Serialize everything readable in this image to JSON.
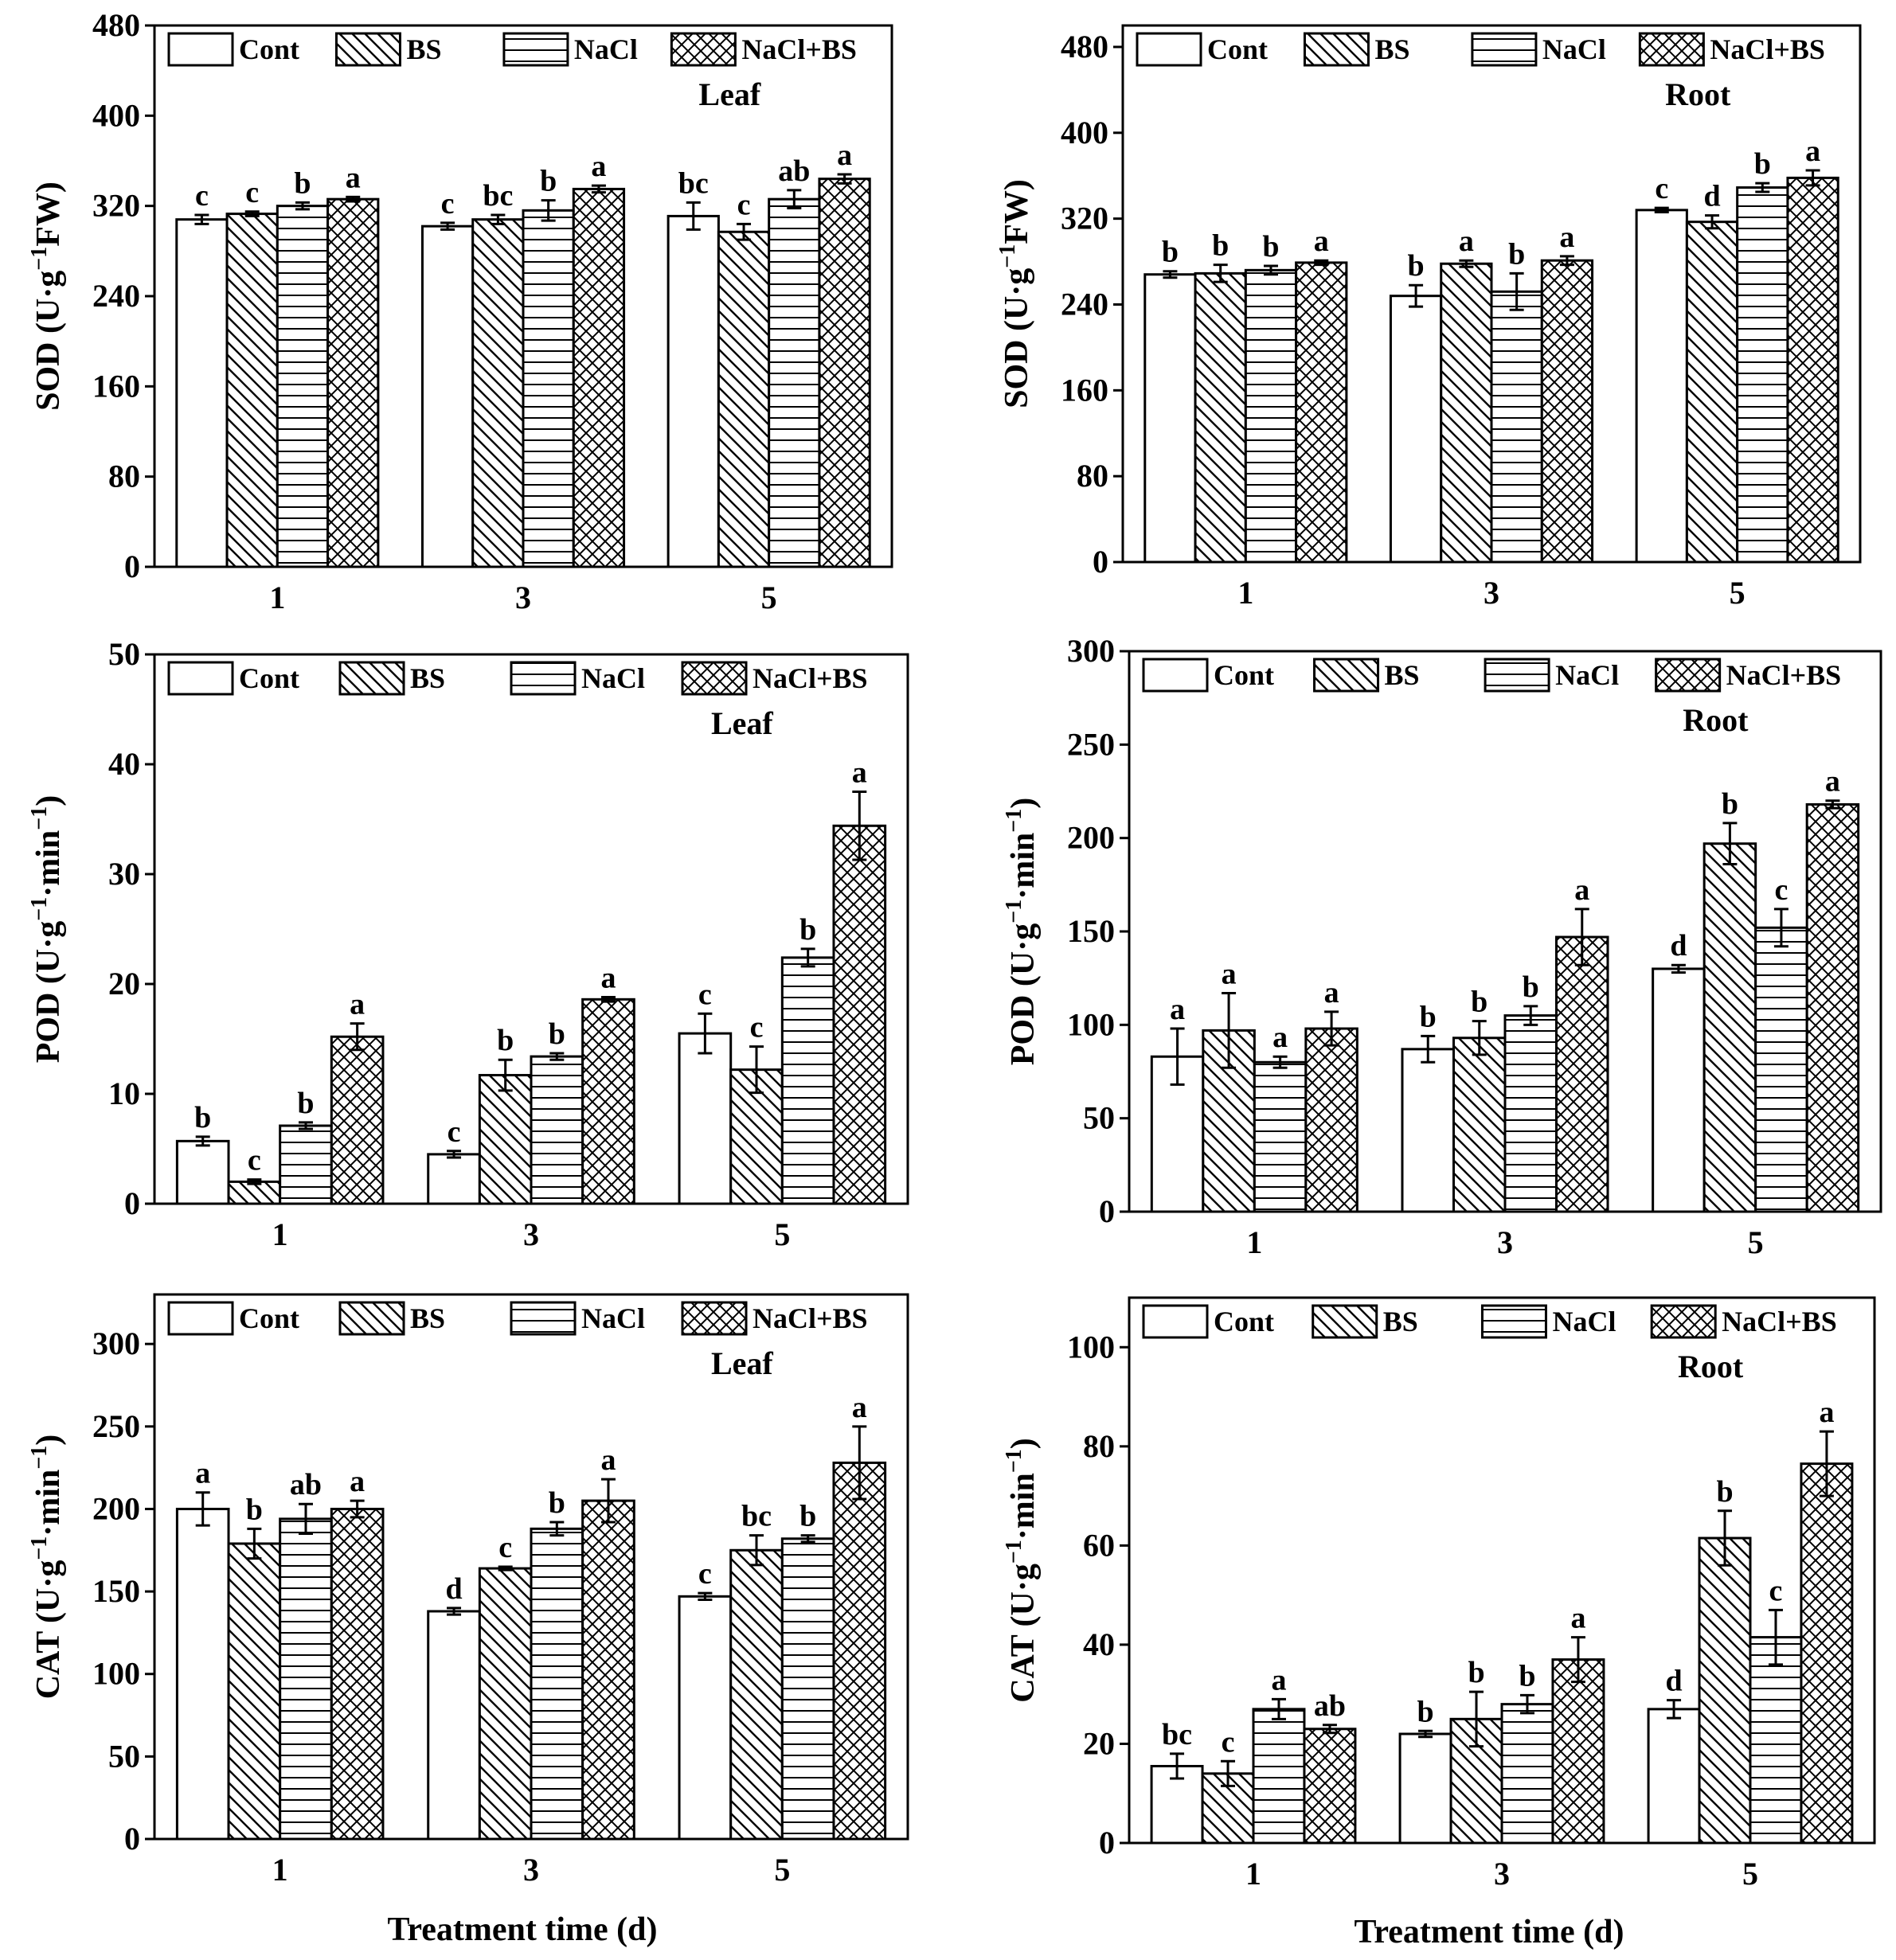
{
  "legend": {
    "Cont": "Cont",
    "BS": "BS",
    "NaCl": "NaCl",
    "NaCl_BS": "NaCl+BS"
  },
  "series_patterns": {
    "Cont": "empty",
    "BS": "diagonal",
    "NaCl": "horizontal",
    "NaCl+BS": "crosshatch"
  },
  "x_axis_title": "Treatment time (d)",
  "chart_data": [
    {
      "type": "bar",
      "panel_label": "Leaf",
      "ylabel_main": "SOD (U·g",
      "ylabel_sup": "−1",
      "ylabel_tail": "FW)",
      "categories": [
        "1",
        "3",
        "5"
      ],
      "ylim": [
        0,
        480
      ],
      "yticks": [
        0,
        80,
        160,
        240,
        320,
        400,
        480
      ],
      "series": [
        {
          "name": "Cont",
          "values": [
            308,
            302,
            311
          ],
          "errors": [
            4,
            3,
            12
          ],
          "letters": [
            "c",
            "c",
            "bc"
          ]
        },
        {
          "name": "BS",
          "values": [
            313,
            308,
            297
          ],
          "errors": [
            2,
            4,
            7
          ],
          "letters": [
            "c",
            "bc",
            "c"
          ]
        },
        {
          "name": "NaCl",
          "values": [
            320,
            316,
            326
          ],
          "errors": [
            3,
            9,
            8
          ],
          "letters": [
            "b",
            "b",
            "ab"
          ]
        },
        {
          "name": "NaCl+BS",
          "values": [
            326,
            335,
            344
          ],
          "errors": [
            2,
            3,
            4
          ],
          "letters": [
            "a",
            "a",
            "a"
          ]
        }
      ]
    },
    {
      "type": "bar",
      "panel_label": "Root",
      "ylabel_main": "SOD (U·g",
      "ylabel_sup": "−1",
      "ylabel_tail": "FW)",
      "categories": [
        "1",
        "3",
        "5"
      ],
      "ylim": [
        0,
        500
      ],
      "yticks": [
        0,
        80,
        160,
        240,
        320,
        400,
        480
      ],
      "series": [
        {
          "name": "Cont",
          "values": [
            268,
            248,
            328
          ],
          "errors": [
            3,
            10,
            2
          ],
          "letters": [
            "b",
            "b",
            "c"
          ]
        },
        {
          "name": "BS",
          "values": [
            269,
            278,
            317
          ],
          "errors": [
            8,
            3,
            6
          ],
          "letters": [
            "b",
            "a",
            "d"
          ]
        },
        {
          "name": "NaCl",
          "values": [
            272,
            252,
            349
          ],
          "errors": [
            4,
            17,
            4
          ],
          "letters": [
            "b",
            "b",
            "b"
          ]
        },
        {
          "name": "NaCl+BS",
          "values": [
            279,
            281,
            358
          ],
          "errors": [
            2,
            4,
            7
          ],
          "letters": [
            "a",
            "a",
            "a"
          ]
        }
      ]
    },
    {
      "type": "bar",
      "panel_label": "Leaf",
      "ylabel_main": "POD (U·g",
      "ylabel_sup": "−1",
      "ylabel_tail": "·min",
      "ylabel_sup2": "−1",
      "ylabel_end": ")",
      "categories": [
        "1",
        "3",
        "5"
      ],
      "ylim": [
        0,
        50
      ],
      "yticks": [
        0,
        10,
        20,
        30,
        40,
        50
      ],
      "series": [
        {
          "name": "Cont",
          "values": [
            5.7,
            4.5,
            15.5
          ],
          "errors": [
            0.4,
            0.3,
            1.8
          ],
          "letters": [
            "b",
            "c",
            "c"
          ]
        },
        {
          "name": "BS",
          "values": [
            2.0,
            11.7,
            12.2
          ],
          "errors": [
            0.2,
            1.4,
            2.1
          ],
          "letters": [
            "c",
            "b",
            "c"
          ]
        },
        {
          "name": "NaCl",
          "values": [
            7.1,
            13.4,
            22.4
          ],
          "errors": [
            0.3,
            0.3,
            0.8
          ],
          "letters": [
            "b",
            "b",
            "b"
          ]
        },
        {
          "name": "NaCl+BS",
          "values": [
            15.2,
            18.6,
            34.4
          ],
          "errors": [
            1.2,
            0.2,
            3.1
          ],
          "letters": [
            "a",
            "a",
            "a"
          ]
        }
      ]
    },
    {
      "type": "bar",
      "panel_label": "Root",
      "ylabel_main": "POD (U·g",
      "ylabel_sup": "−1",
      "ylabel_tail": "·min",
      "ylabel_sup2": "−1",
      "ylabel_end": ")",
      "categories": [
        "1",
        "3",
        "5"
      ],
      "ylim": [
        0,
        300
      ],
      "yticks": [
        0,
        50,
        100,
        150,
        200,
        250,
        300
      ],
      "series": [
        {
          "name": "Cont",
          "values": [
            83,
            87,
            130
          ],
          "errors": [
            15,
            7,
            2
          ],
          "letters": [
            "a",
            "b",
            "d"
          ]
        },
        {
          "name": "BS",
          "values": [
            97,
            93,
            197
          ],
          "errors": [
            20,
            9,
            11
          ],
          "letters": [
            "a",
            "b",
            "b"
          ]
        },
        {
          "name": "NaCl",
          "values": [
            80,
            105,
            152
          ],
          "errors": [
            3,
            5,
            10
          ],
          "letters": [
            "a",
            "b",
            "c"
          ]
        },
        {
          "name": "NaCl+BS",
          "values": [
            98,
            147,
            218
          ],
          "errors": [
            9,
            15,
            2
          ],
          "letters": [
            "a",
            "a",
            "a"
          ]
        }
      ]
    },
    {
      "type": "bar",
      "panel_label": "Leaf",
      "ylabel_main": "CAT (U·g",
      "ylabel_sup": "−1",
      "ylabel_tail": "·min",
      "ylabel_sup2": "−1",
      "ylabel_end": ")",
      "categories": [
        "1",
        "3",
        "5"
      ],
      "ylim": [
        0,
        330
      ],
      "yticks": [
        0,
        50,
        100,
        150,
        200,
        250,
        300
      ],
      "series": [
        {
          "name": "Cont",
          "values": [
            200,
            138,
            147
          ],
          "errors": [
            10,
            2,
            2
          ],
          "letters": [
            "a",
            "d",
            "c"
          ]
        },
        {
          "name": "BS",
          "values": [
            179,
            164,
            175
          ],
          "errors": [
            9,
            1,
            9
          ],
          "letters": [
            "b",
            "c",
            "bc"
          ]
        },
        {
          "name": "NaCl",
          "values": [
            194,
            188,
            182
          ],
          "errors": [
            9,
            4,
            2
          ],
          "letters": [
            "ab",
            "b",
            "b"
          ]
        },
        {
          "name": "NaCl+BS",
          "values": [
            200,
            205,
            228
          ],
          "errors": [
            5,
            13,
            22
          ],
          "letters": [
            "a",
            "a",
            "a"
          ]
        }
      ]
    },
    {
      "type": "bar",
      "panel_label": "Root",
      "ylabel_main": "CAT (U·g",
      "ylabel_sup": "−1",
      "ylabel_tail": "·min",
      "ylabel_sup2": "−1",
      "ylabel_end": ")",
      "categories": [
        "1",
        "3",
        "5"
      ],
      "ylim": [
        0,
        110
      ],
      "yticks": [
        20,
        40,
        60,
        80,
        100
      ],
      "show_zero_tick": true,
      "series": [
        {
          "name": "Cont",
          "values": [
            15.5,
            22,
            27
          ],
          "errors": [
            2.5,
            0.6,
            1.8
          ],
          "letters": [
            "bc",
            "b",
            "d"
          ]
        },
        {
          "name": "BS",
          "values": [
            14,
            25,
            61.5
          ],
          "errors": [
            2.5,
            5.5,
            5.5
          ],
          "letters": [
            "c",
            "b",
            "b"
          ]
        },
        {
          "name": "NaCl",
          "values": [
            27,
            28,
            41.5
          ],
          "errors": [
            2,
            1.8,
            5.5
          ],
          "letters": [
            "a",
            "b",
            "c"
          ]
        },
        {
          "name": "NaCl+BS",
          "values": [
            23,
            37,
            76.5
          ],
          "errors": [
            0.8,
            4.5,
            6.5
          ],
          "letters": [
            "ab",
            "a",
            "a"
          ]
        }
      ]
    }
  ]
}
